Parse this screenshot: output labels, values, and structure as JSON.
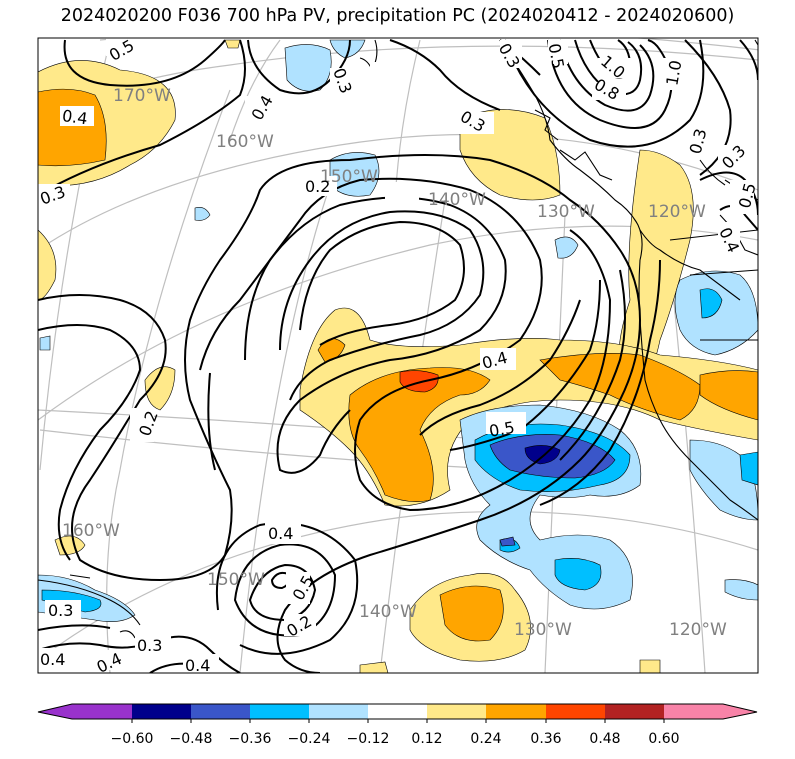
{
  "title": "2024020200 F036 700 hPa PV, precipitation PC (2024020412 - 2024020600)",
  "colors": {
    "neg_060": "#9932cc",
    "neg_048": "#00008b",
    "neg_036": "#3a56c9",
    "neg_024": "#00bfff",
    "neg_012": "#b0e2ff",
    "neutral": "#ffffff",
    "pos_012": "#ffe98a",
    "pos_024": "#ffa500",
    "pos_036": "#ff4500",
    "pos_048": "#b22222",
    "pos_060": "#f883a8",
    "graticule": "#bfbfbf",
    "contour": "#000000",
    "coastline": "#000000"
  },
  "colorbar": {
    "ticks": [
      "−0.60",
      "−0.48",
      "−0.36",
      "−0.24",
      "−0.12",
      "0.12",
      "0.24",
      "0.36",
      "0.48",
      "0.60"
    ]
  },
  "longitude_labels": [
    "170°W",
    "160°W",
    "150°W",
    "140°W",
    "130°W",
    "120°W",
    "160°W",
    "150°W",
    "140°W",
    "130°W",
    "120°W"
  ],
  "contour_labels": [
    "0.5",
    "0.4",
    "0.3",
    "0.4",
    "0.3",
    "0.2",
    "0.3",
    "0.5",
    "0.3",
    "1.0",
    "0.8",
    "1.0",
    "0.3",
    "0.3",
    "0.5",
    "0.4",
    "0.5",
    "0.2",
    "0.4",
    "0.5",
    "0.2",
    "0.3",
    "0.3",
    "0.4",
    "0.4",
    "0.4"
  ]
}
